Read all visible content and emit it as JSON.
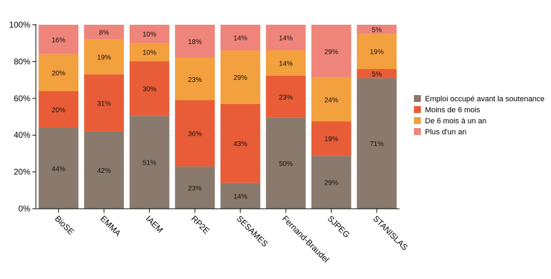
{
  "chart_data": {
    "type": "bar",
    "stacked": true,
    "normalized": true,
    "title": "",
    "xlabel": "",
    "ylabel": "",
    "ylim": [
      0,
      100
    ],
    "y_ticks": [
      "0%",
      "20%",
      "40%",
      "60%",
      "80%",
      "100%"
    ],
    "grid": true,
    "legend_position": "right",
    "categories": [
      "BioSE",
      "EMMA",
      "IAEM",
      "RP2E",
      "SESAMES",
      "Fernand-Braudel",
      "SJPEG",
      "STANISLAS"
    ],
    "series": [
      {
        "name": "Emploi occupé avant la soutenance",
        "color": "#8a7a6d",
        "values": [
          44,
          42,
          51,
          23,
          14,
          50,
          29,
          71
        ]
      },
      {
        "name": "Moins de 6 mois",
        "color": "#e85d37",
        "values": [
          20,
          31,
          30,
          36,
          43,
          23,
          19,
          5
        ]
      },
      {
        "name": "De 6 mois à un an",
        "color": "#f3a03e",
        "values": [
          20,
          19,
          10,
          23,
          29,
          14,
          24,
          19
        ]
      },
      {
        "name": "Plus d'un an",
        "color": "#ef857a",
        "values": [
          16,
          8,
          10,
          18,
          14,
          14,
          29,
          5
        ]
      }
    ],
    "value_label_suffix": "%"
  }
}
